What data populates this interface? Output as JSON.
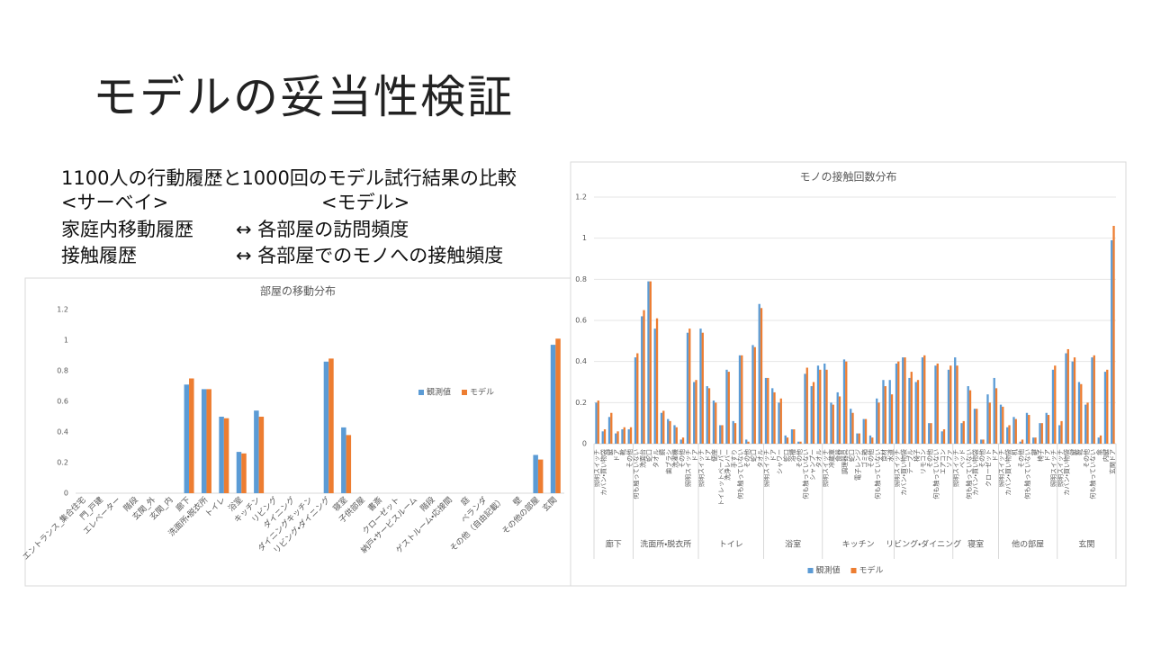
{
  "title": "モデルの妥当性検証",
  "text": {
    "heading": "1100人の行動履歴と1000回のモデル試行結果の比較",
    "rows": [
      [
        "<サーベイ>",
        "<モデル>"
      ],
      [
        "家庭内移動履歴",
        "↔ 各部屋の訪問頻度"
      ],
      [
        "接触履歴",
        "↔ 各部屋でのモノへの接触頻度"
      ]
    ]
  },
  "chart_data": [
    {
      "type": "bar",
      "title": "部屋の移動分布",
      "grid": false,
      "legend": "right",
      "categories": [
        "エントランス_集合住宅",
        "門_戸建",
        "エレベーター",
        "階段",
        "玄関_外",
        "玄関_内",
        "廊下",
        "洗面所・脱衣所",
        "トイレ",
        "浴室",
        "キッチン",
        "リビング",
        "ダイニング",
        "ダイニングキッチン",
        "リビング・ダイニング",
        "寝室",
        "子供部屋",
        "書斎",
        "クローゼット",
        "納戸・サービスルーム",
        "階段",
        "ゲストルーム・応接間",
        "庭",
        "ベランダ",
        "その他（自由記載）",
        "壁",
        "その他の部屋",
        "玄関"
      ],
      "series": [
        {
          "name": "観測値",
          "color": "#5b9bd5",
          "values": [
            0,
            0,
            0,
            0,
            0,
            0,
            0.71,
            0.68,
            0.5,
            0.27,
            0.54,
            0,
            0,
            0,
            0.86,
            0.43,
            0,
            0,
            0,
            0,
            0,
            0,
            0,
            0,
            0,
            0,
            0.25,
            0.97
          ]
        },
        {
          "name": "モデル",
          "color": "#ed7d31",
          "values": [
            0,
            0,
            0,
            0,
            0,
            0,
            0.75,
            0.68,
            0.49,
            0.26,
            0.5,
            0,
            0,
            0,
            0.88,
            0.38,
            0,
            0,
            0,
            0,
            0,
            0,
            0,
            0,
            0,
            0,
            0.22,
            1.01
          ]
        }
      ],
      "ylim": [
        0,
        1.2
      ],
      "yticks": [
        0,
        0.2,
        0.4,
        0.6,
        0.8,
        1,
        1.2
      ]
    },
    {
      "type": "grouped-bar",
      "title": "モノの接触回数分布",
      "grid": true,
      "legend": "bottom",
      "groups": [
        {
          "name": "廊下",
          "categories": [
            "照明スイッチ",
            "カバン・買い物袋",
            "鍵",
            "ドア",
            "靴",
            "その他"
          ]
        },
        {
          "name": "洗面所・脱衣所",
          "categories": [
            "何も触っていない",
            "洗面台",
            "蛇口",
            "タオル",
            "鏡",
            "歯ブラシ",
            "洗濯機",
            "その他",
            "照明スイッチ",
            "ドア"
          ]
        },
        {
          "name": "トイレ",
          "categories": [
            "照明スイッチ",
            "ドア",
            "便座",
            "トイレットペーパー",
            "洗浄レバー",
            "手すり",
            "何も触っていない",
            "その他",
            "蛇口",
            "タオル"
          ]
        },
        {
          "name": "浴室",
          "categories": [
            "照明スイッチ",
            "ドア",
            "シャワー",
            "蛇口",
            "浴槽",
            "その他",
            "何も触っていない",
            "シャンプー",
            "タオル"
          ]
        },
        {
          "name": "キッチン",
          "categories": [
            "照明スイッチ",
            "冷蔵庫",
            "食器",
            "調理器具",
            "蛇口",
            "電子レンジ",
            "ゴミ箱",
            "その他",
            "何も触っていない",
            "食材",
            "水道"
          ]
        },
        {
          "name": "リビング・ダイニング",
          "categories": [
            "照明スイッチ",
            "カバン・買い物袋",
            "テーブル",
            "椅子",
            "リモコン",
            "その他",
            "何も触っていない",
            "エアコン",
            "ソファ"
          ]
        },
        {
          "name": "寝室",
          "categories": [
            "照明スイッチ",
            "ベッド",
            "何も触っていない",
            "カバン・買い物袋",
            "その他",
            "クローゼット",
            "ドア"
          ]
        },
        {
          "name": "他の部屋",
          "categories": [
            "照明スイッチ",
            "カバン・買い物袋",
            "机",
            "その他",
            "何も触っていない",
            "鍵",
            "椅子",
            "ドア",
            "照明スイッチ"
          ]
        },
        {
          "name": "玄関",
          "categories": [
            "照明スイッチ",
            "カバン・買い物袋",
            "鍵",
            "靴",
            "その他",
            "何も触っていない",
            "傘",
            "内鍵",
            "玄関ドア"
          ]
        }
      ],
      "series": [
        {
          "name": "観測値",
          "color": "#5b9bd5",
          "values": [
            0.2,
            0.06,
            0.13,
            0.05,
            0.07,
            0.07,
            0.42,
            0.62,
            0.79,
            0.56,
            0.15,
            0.12,
            0.09,
            0.02,
            0.54,
            0.3,
            0.56,
            0.28,
            0.21,
            0.09,
            0.36,
            0.11,
            0.43,
            0.02,
            0.48,
            0.68,
            0.32,
            0.27,
            0.2,
            0.04,
            0.07,
            0.01,
            0.34,
            0.28,
            0.38,
            0.39,
            0.2,
            0.25,
            0.41,
            0.17,
            0.05,
            0.12,
            0.04,
            0.22,
            0.31,
            0.31,
            0.39,
            0.42,
            0.32,
            0.3,
            0.42,
            0.1,
            0.38,
            0.06,
            0.36,
            0.42,
            0.1,
            0.28,
            0.17,
            0.02,
            0.24,
            0.32,
            0.19,
            0.08,
            0.13,
            0.01,
            0.15,
            0.03,
            0.1,
            0.15,
            0.36,
            0.09,
            0.44,
            0.4,
            0.3,
            0.19,
            0.42,
            0.03,
            0.35,
            0.99
          ]
        },
        {
          "name": "モデル",
          "color": "#ed7d31",
          "values": [
            0.21,
            0.07,
            0.15,
            0.06,
            0.08,
            0.08,
            0.44,
            0.65,
            0.79,
            0.61,
            0.16,
            0.11,
            0.08,
            0.03,
            0.56,
            0.31,
            0.54,
            0.27,
            0.2,
            0.09,
            0.35,
            0.1,
            0.43,
            0.01,
            0.47,
            0.66,
            0.32,
            0.25,
            0.22,
            0.03,
            0.07,
            0.01,
            0.37,
            0.3,
            0.36,
            0.36,
            0.19,
            0.23,
            0.4,
            0.15,
            0.05,
            0.12,
            0.03,
            0.2,
            0.28,
            0.24,
            0.4,
            0.42,
            0.35,
            0.31,
            0.43,
            0.1,
            0.39,
            0.07,
            0.38,
            0.38,
            0.11,
            0.26,
            0.17,
            0.02,
            0.2,
            0.27,
            0.18,
            0.09,
            0.12,
            0.02,
            0.14,
            0.03,
            0.1,
            0.14,
            0.38,
            0.11,
            0.46,
            0.42,
            0.29,
            0.2,
            0.43,
            0.04,
            0.36,
            1.06
          ]
        }
      ],
      "ylim": [
        0,
        1.2
      ],
      "yticks": [
        0,
        0.2,
        0.4,
        0.6,
        0.8,
        1,
        1.2
      ]
    }
  ]
}
